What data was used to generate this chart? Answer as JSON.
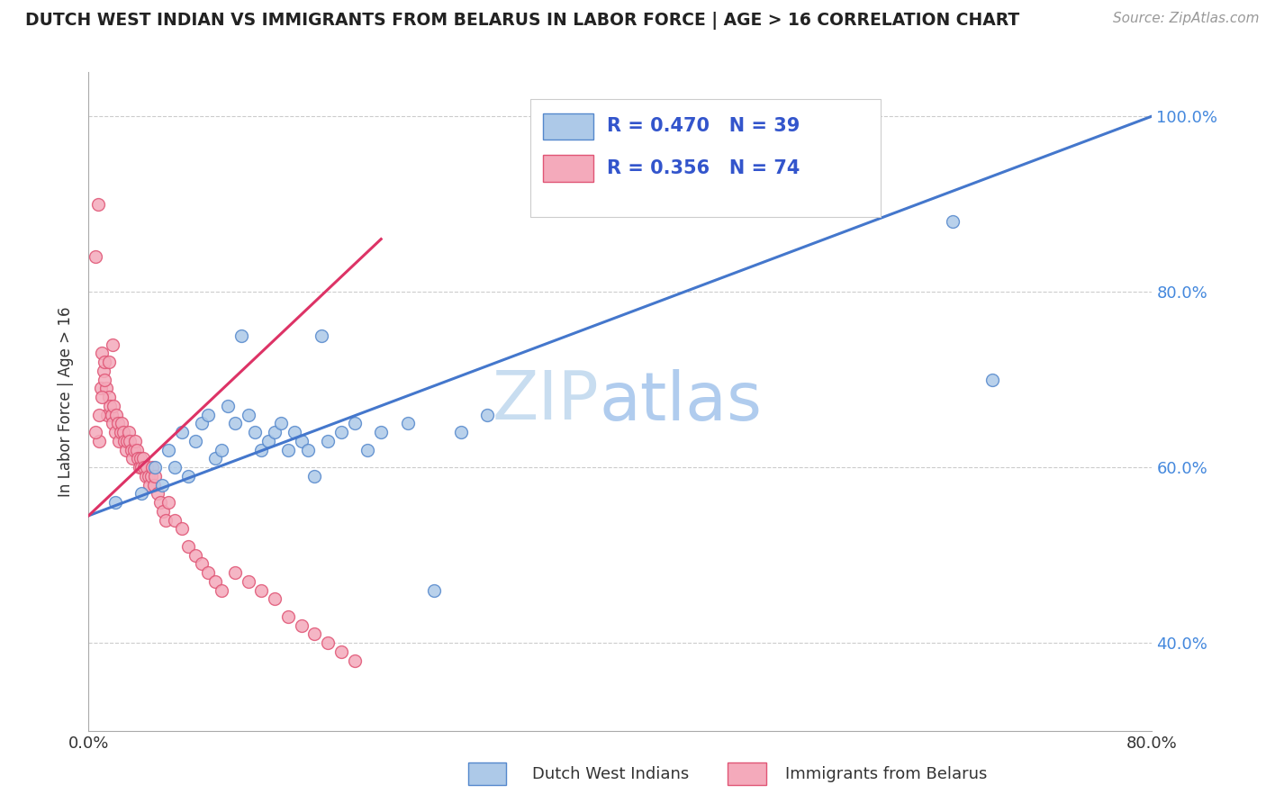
{
  "title": "DUTCH WEST INDIAN VS IMMIGRANTS FROM BELARUS IN LABOR FORCE | AGE > 16 CORRELATION CHART",
  "source_text": "Source: ZipAtlas.com",
  "ylabel": "In Labor Force | Age > 16",
  "xmin": 0.0,
  "xmax": 0.8,
  "ymin": 0.3,
  "ymax": 1.05,
  "blue_R": 0.47,
  "blue_N": 39,
  "pink_R": 0.356,
  "pink_N": 74,
  "blue_color": "#adc9e8",
  "blue_edge": "#5588cc",
  "pink_color": "#f4aabb",
  "pink_edge": "#e05575",
  "blue_line_color": "#4477cc",
  "pink_line_color": "#dd3366",
  "background_color": "#ffffff",
  "legend_color": "#3355cc",
  "blue_line_x0": 0.0,
  "blue_line_y0": 0.545,
  "blue_line_x1": 0.8,
  "blue_line_y1": 1.0,
  "pink_line_x0": 0.0,
  "pink_line_y0": 0.545,
  "pink_line_x1": 0.22,
  "pink_line_y1": 0.86,
  "blue_scatter_x": [
    0.02,
    0.04,
    0.05,
    0.055,
    0.06,
    0.065,
    0.07,
    0.075,
    0.08,
    0.085,
    0.09,
    0.095,
    0.1,
    0.105,
    0.11,
    0.115,
    0.12,
    0.125,
    0.13,
    0.135,
    0.14,
    0.145,
    0.15,
    0.155,
    0.16,
    0.165,
    0.17,
    0.175,
    0.18,
    0.19,
    0.2,
    0.21,
    0.22,
    0.24,
    0.26,
    0.28,
    0.3,
    0.65,
    0.68
  ],
  "blue_scatter_y": [
    0.56,
    0.57,
    0.6,
    0.58,
    0.62,
    0.6,
    0.64,
    0.59,
    0.63,
    0.65,
    0.66,
    0.61,
    0.62,
    0.67,
    0.65,
    0.75,
    0.66,
    0.64,
    0.62,
    0.63,
    0.64,
    0.65,
    0.62,
    0.64,
    0.63,
    0.62,
    0.59,
    0.75,
    0.63,
    0.64,
    0.65,
    0.62,
    0.64,
    0.65,
    0.46,
    0.64,
    0.66,
    0.88,
    0.7
  ],
  "pink_scatter_x": [
    0.005,
    0.007,
    0.008,
    0.009,
    0.01,
    0.011,
    0.012,
    0.013,
    0.014,
    0.015,
    0.016,
    0.017,
    0.018,
    0.019,
    0.02,
    0.021,
    0.022,
    0.023,
    0.024,
    0.025,
    0.026,
    0.027,
    0.028,
    0.029,
    0.03,
    0.031,
    0.032,
    0.033,
    0.034,
    0.035,
    0.036,
    0.037,
    0.038,
    0.039,
    0.04,
    0.041,
    0.042,
    0.043,
    0.044,
    0.045,
    0.046,
    0.047,
    0.048,
    0.049,
    0.05,
    0.052,
    0.054,
    0.056,
    0.058,
    0.06,
    0.065,
    0.07,
    0.075,
    0.08,
    0.085,
    0.09,
    0.095,
    0.1,
    0.11,
    0.12,
    0.13,
    0.14,
    0.15,
    0.16,
    0.17,
    0.18,
    0.19,
    0.2,
    0.005,
    0.008,
    0.01,
    0.012,
    0.015,
    0.018
  ],
  "pink_scatter_y": [
    0.84,
    0.9,
    0.63,
    0.69,
    0.73,
    0.71,
    0.72,
    0.69,
    0.66,
    0.68,
    0.67,
    0.66,
    0.65,
    0.67,
    0.64,
    0.66,
    0.65,
    0.63,
    0.64,
    0.65,
    0.64,
    0.63,
    0.62,
    0.63,
    0.64,
    0.63,
    0.62,
    0.61,
    0.62,
    0.63,
    0.62,
    0.61,
    0.6,
    0.61,
    0.6,
    0.61,
    0.6,
    0.59,
    0.6,
    0.59,
    0.58,
    0.59,
    0.6,
    0.58,
    0.59,
    0.57,
    0.56,
    0.55,
    0.54,
    0.56,
    0.54,
    0.53,
    0.51,
    0.5,
    0.49,
    0.48,
    0.47,
    0.46,
    0.48,
    0.47,
    0.46,
    0.45,
    0.43,
    0.42,
    0.41,
    0.4,
    0.39,
    0.38,
    0.64,
    0.66,
    0.68,
    0.7,
    0.72,
    0.74
  ],
  "marker_size": 100,
  "marker_lw": 1.0,
  "line_width": 2.2
}
